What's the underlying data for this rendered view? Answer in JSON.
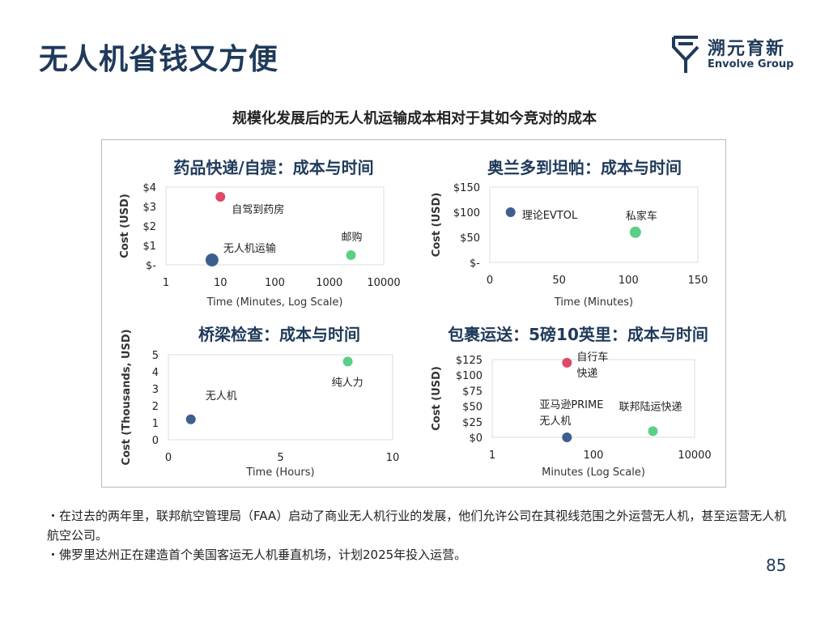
{
  "header": {
    "title": "无人机省钱又方便"
  },
  "logo": {
    "name_cn": "溯元育新",
    "name_en": "Envolve Group",
    "color": "#1f3a5a"
  },
  "subtitle": "规模化发展后的无人机运输成本相对于其如今竞对的成本",
  "colors": {
    "blue": "#3d5f8f",
    "red": "#e0486a",
    "green": "#5ccf86"
  },
  "chart_data": [
    {
      "type": "scatter",
      "title": "药品快递/自提：成本与时间",
      "xlabel": "Time (Minutes, Log Scale)",
      "ylabel": "Cost (USD)",
      "xscale": "log",
      "xlim": [
        1,
        10000
      ],
      "ylim": [
        0,
        4
      ],
      "xticks": [
        "1",
        "10",
        "100",
        "1000",
        "10000"
      ],
      "yticks": [
        "$-",
        "$1",
        "$2",
        "$3",
        "$4"
      ],
      "points": [
        {
          "label": "无人机运输",
          "x": 7,
          "y": 0.25,
          "color": "blue"
        },
        {
          "label": "自驾到药房",
          "x": 10,
          "y": 3.5,
          "color": "red"
        },
        {
          "label": "邮购",
          "x": 2500,
          "y": 0.5,
          "color": "green"
        }
      ]
    },
    {
      "type": "scatter",
      "title": "奥兰多到坦帕：成本与时间",
      "xlabel": "Time (Minutes)",
      "ylabel": "Cost (USD)",
      "xscale": "linear",
      "xlim": [
        0,
        150
      ],
      "ylim": [
        0,
        150
      ],
      "xticks": [
        "0",
        "50",
        "100",
        "150"
      ],
      "yticks": [
        "$-",
        "$50",
        "$100",
        "$150"
      ],
      "points": [
        {
          "label": "理论EVTOL",
          "x": 15,
          "y": 100,
          "color": "blue"
        },
        {
          "label": "私家车",
          "x": 105,
          "y": 60,
          "color": "green"
        }
      ]
    },
    {
      "type": "scatter",
      "title": "桥梁检查：成本与时间",
      "xlabel": "Time (Hours)",
      "ylabel": "Cost (Thousands, USD)",
      "xscale": "linear",
      "xlim": [
        0,
        10
      ],
      "ylim": [
        0,
        5
      ],
      "xticks": [
        "0",
        "5",
        "10"
      ],
      "yticks": [
        "0",
        "1",
        "2",
        "3",
        "4",
        "5"
      ],
      "points": [
        {
          "label": "无人机",
          "x": 1,
          "y": 1.2,
          "color": "blue"
        },
        {
          "label": "纯人力",
          "x": 8,
          "y": 4.6,
          "color": "green"
        }
      ]
    },
    {
      "type": "scatter",
      "title": "包裹运送：5磅10英里：成本与时间",
      "xlabel": "Minutes (Log Scale)",
      "ylabel": "Cost (USD)",
      "xscale": "log",
      "xlim": [
        1,
        10000
      ],
      "ylim": [
        0,
        125
      ],
      "xticks": [
        "1",
        "100",
        "10000"
      ],
      "yticks": [
        "$0",
        "$25",
        "$50",
        "$75",
        "$100",
        "$125"
      ],
      "points": [
        {
          "label": "自行车快递",
          "label_lines": [
            "自行车",
            "快递"
          ],
          "x": 30,
          "y": 120,
          "color": "red"
        },
        {
          "label": "亚马逊PRIME无人机",
          "label_lines": [
            "亚马逊PRIME",
            "无人机"
          ],
          "x": 30,
          "y": 0,
          "color": "blue"
        },
        {
          "label": "联邦陆运快递",
          "label_lines": [
            "联邦陆运快递"
          ],
          "x": 1500,
          "y": 10,
          "color": "green"
        }
      ]
    }
  ],
  "bullets": [
    "・在过去的两年里，联邦航空管理局（FAA）启动了商业无人机行业的发展，他们允许公司在其视线范围之外运营无人机，甚至运营无人机航空公司。",
    "・佛罗里达州正在建造首个美国客运无人机垂直机场，计划2025年投入运营。"
  ],
  "page_number": "85"
}
